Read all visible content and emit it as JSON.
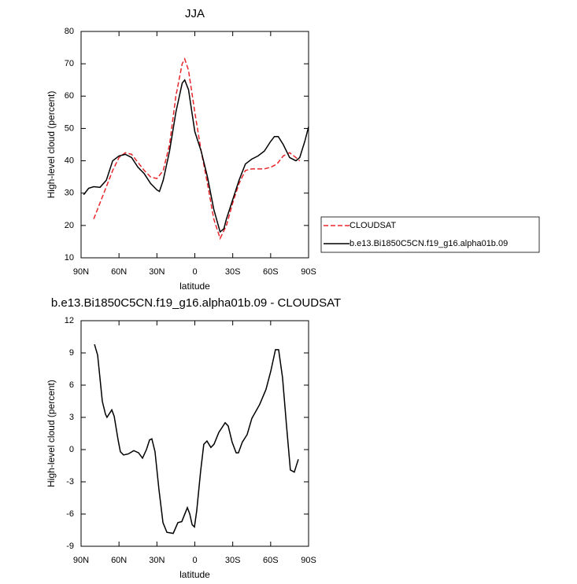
{
  "chart_data": [
    {
      "type": "line",
      "title": "JJA",
      "x_label": "latitude",
      "y_label": "High-level cloud (percent)",
      "xlim": [
        90,
        -90
      ],
      "ylim": [
        10,
        80
      ],
      "xticks": [
        {
          "value": 90,
          "label": "90N"
        },
        {
          "value": 60,
          "label": "60N"
        },
        {
          "value": 30,
          "label": "30N"
        },
        0,
        {
          "value": -30,
          "label": "30S"
        },
        {
          "value": -60,
          "label": "60S"
        },
        {
          "value": -90,
          "label": "90S"
        }
      ],
      "yticks": [
        10,
        20,
        30,
        40,
        50,
        60,
        70,
        80
      ],
      "legend": true,
      "series": [
        {
          "name": "CLOUDSAT",
          "color": "#e8262b",
          "dashed": true,
          "x": [
            80,
            75,
            70,
            65,
            60,
            55,
            50,
            45,
            40,
            35,
            30,
            25,
            20,
            15,
            10,
            8,
            5,
            0,
            -5,
            -10,
            -15,
            -20,
            -25,
            -30,
            -35,
            -40,
            -45,
            -50,
            -55,
            -60,
            -65,
            -70,
            -75,
            -80,
            -83
          ],
          "values": [
            22,
            27,
            32,
            37,
            41,
            42.5,
            42,
            39.5,
            37,
            35,
            34.5,
            37,
            45,
            60,
            70,
            71.5,
            68,
            55,
            43,
            33,
            22,
            16,
            20,
            27,
            33,
            37,
            37.5,
            37.5,
            37.5,
            38,
            39,
            41.5,
            42.5,
            41,
            40
          ]
        },
        {
          "name": "b.e13.Bi1850C5CN.f19_g16.alpha01b.09",
          "color": "#000000",
          "dashed": false,
          "x": [
            88,
            84,
            80,
            75,
            70,
            65,
            60,
            55,
            50,
            45,
            40,
            35,
            30,
            28,
            25,
            20,
            15,
            10,
            8,
            5,
            0,
            -5,
            -10,
            -15,
            -20,
            -23,
            -25,
            -30,
            -35,
            -40,
            -45,
            -50,
            -55,
            -60,
            -63,
            -66,
            -70,
            -75,
            -80,
            -83,
            -87,
            -90
          ],
          "values": [
            29.5,
            31.5,
            32,
            31.8,
            34,
            40,
            41.5,
            42,
            41,
            38,
            36,
            33,
            31,
            30.5,
            34,
            43,
            55,
            64,
            65,
            62,
            49,
            43,
            35,
            25,
            18,
            19,
            22,
            28,
            34,
            39,
            40.5,
            41.5,
            43,
            46,
            47.5,
            47.5,
            45,
            41,
            40,
            41,
            46,
            50.5
          ]
        }
      ]
    },
    {
      "type": "line",
      "title": "b.e13.Bi1850C5CN.f19_g16.alpha01b.09 - CLOUDSAT",
      "x_label": "latitude",
      "y_label": "High-level cloud (percent)",
      "xlim": [
        90,
        -90
      ],
      "ylim": [
        -9,
        12
      ],
      "xticks": [
        {
          "value": 90,
          "label": "90N"
        },
        {
          "value": 60,
          "label": "60N"
        },
        {
          "value": 30,
          "label": "30N"
        },
        0,
        {
          "value": -30,
          "label": "30S"
        },
        {
          "value": -60,
          "label": "60S"
        },
        {
          "value": -90,
          "label": "90S"
        }
      ],
      "yticks": [
        -9,
        -6,
        -3,
        0,
        3,
        6,
        9,
        12
      ],
      "legend": false,
      "series": [
        {
          "color": "#000000",
          "dashed": false,
          "x": [
            79.4,
            76.9,
            73.2,
            70.7,
            69.5,
            65.7,
            63.8,
            60.7,
            58.9,
            56.4,
            52.6,
            48.3,
            44.5,
            41.4,
            38.3,
            35.8,
            34,
            31.5,
            28.4,
            25.2,
            22.1,
            17.1,
            13.4,
            10.3,
            5.9,
            4,
            2.1,
            0.3,
            -1.5,
            -4.6,
            -7.1,
            -9.6,
            -12.7,
            -15.2,
            -19,
            -24,
            -26.4,
            -29.5,
            -32.7,
            -34.5,
            -37.6,
            -41.4,
            -45.1,
            -51.3,
            -56.3,
            -60.1,
            -63.8,
            -66.3,
            -69.4,
            -72.5,
            -75.6,
            -78.7,
            -81.9
          ],
          "values": [
            9.8,
            8.8,
            4.5,
            3.3,
            3,
            3.7,
            3.1,
            0.9,
            -0.2,
            -0.5,
            -0.4,
            -0.1,
            -0.3,
            -0.8,
            0,
            0.9,
            1,
            -0.2,
            -3.7,
            -6.8,
            -7.7,
            -7.8,
            -6.8,
            -6.7,
            -5.4,
            -6,
            -7,
            -7.2,
            -5.7,
            -2,
            0.5,
            0.8,
            0.2,
            0.5,
            1.6,
            2.5,
            2.2,
            0.7,
            -0.3,
            -0.3,
            0.7,
            1.4,
            2.9,
            4.2,
            5.6,
            7.3,
            9.3,
            9.3,
            6.7,
            2.3,
            -1.9,
            -2.1,
            -0.9
          ]
        }
      ]
    }
  ]
}
